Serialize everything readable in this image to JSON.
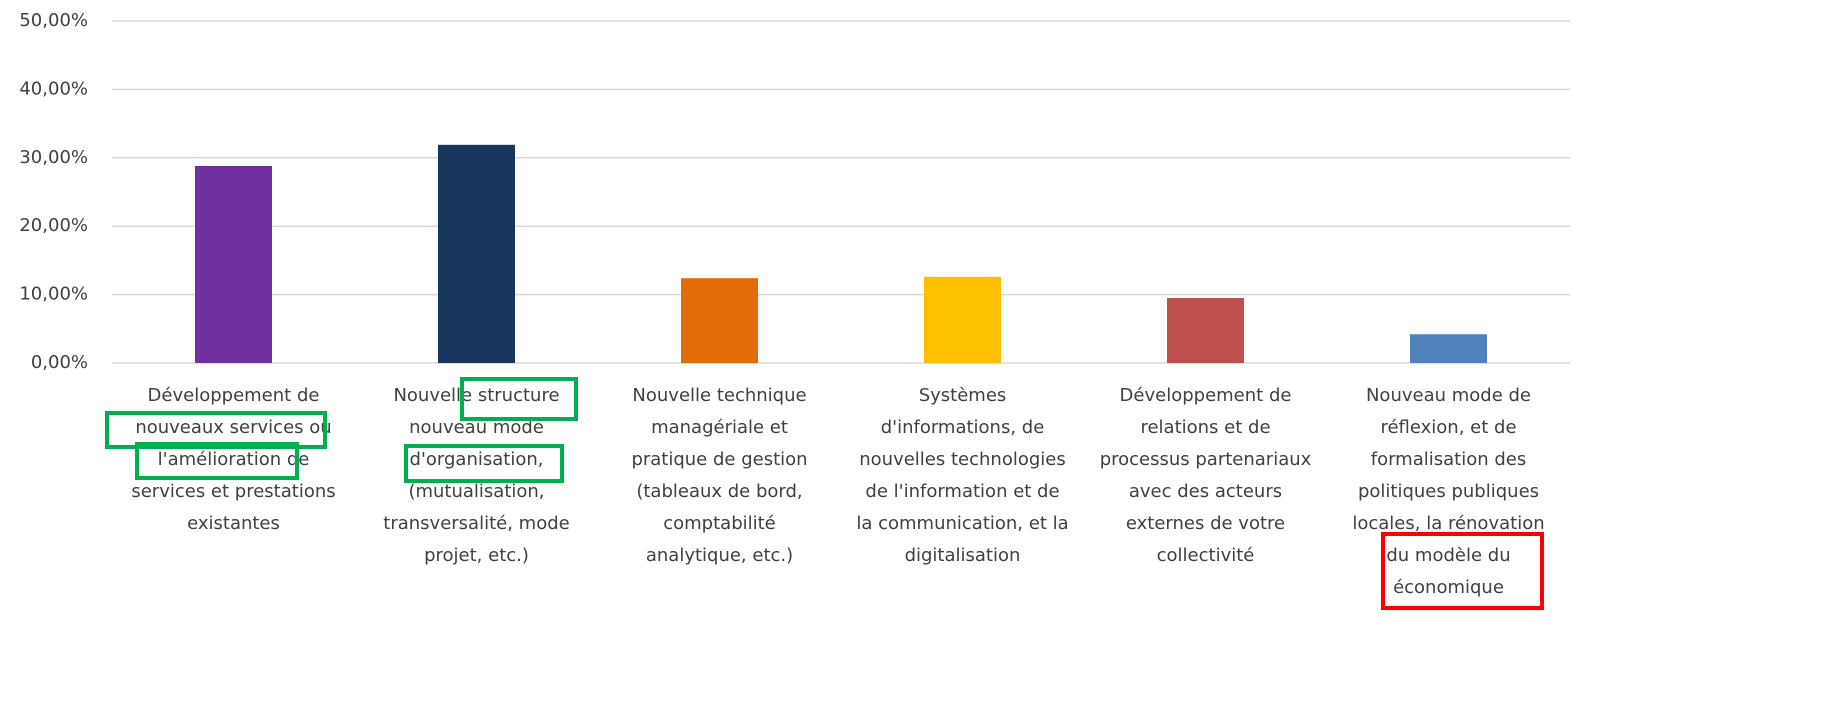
{
  "chart_data": {
    "type": "bar",
    "categories": [
      [
        "Développement de",
        "nouveaux services ou",
        "l'amélioration de",
        "services et prestations",
        "existantes"
      ],
      [
        "Nouvelle structure",
        "nouveau mode",
        "d'organisation,",
        "(mutualisation,",
        "transversalité, mode",
        "projet, etc.)"
      ],
      [
        "Nouvelle technique",
        "managériale et",
        "pratique de gestion",
        "(tableaux de bord,",
        "comptabilité",
        "analytique, etc.)"
      ],
      [
        "Systèmes",
        "d'informations, de",
        "nouvelles technologies",
        "de l'information et de",
        "la communication, et la",
        "digitalisation"
      ],
      [
        "Développement de",
        "relations et de",
        "processus partenariaux",
        "avec des acteurs",
        "externes de votre",
        "collectivité"
      ],
      [
        "Nouveau mode de",
        "réflexion, et de",
        "formalisation des",
        "politiques publiques",
        "locales, la rénovation",
        "du modèle du",
        "économique"
      ]
    ],
    "values": [
      28.8,
      31.9,
      12.4,
      12.6,
      9.5,
      4.2
    ],
    "colors": [
      "#7030a0",
      "#17375e",
      "#e36c09",
      "#ffc000",
      "#c0504d",
      "#4f81bd"
    ],
    "ylim": [
      0,
      50
    ],
    "yticks": [
      {
        "value": 0,
        "label": "0,00%"
      },
      {
        "value": 10,
        "label": "10,00%"
      },
      {
        "value": 20,
        "label": "20,00%"
      },
      {
        "value": 30,
        "label": "30,00%"
      },
      {
        "value": 40,
        "label": "40,00%"
      },
      {
        "value": 50,
        "label": "50,00%"
      }
    ],
    "grid": true
  }
}
